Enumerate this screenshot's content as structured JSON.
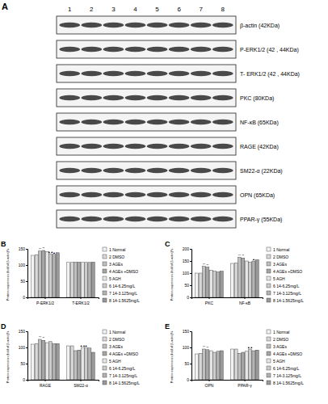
{
  "blot": {
    "title": "A",
    "lanes": [
      "1",
      "2",
      "3",
      "4",
      "5",
      "6",
      "7",
      "8"
    ],
    "proteins": [
      "β-actin (42KDa)",
      "P-ERK1/2 (42 , 44KDa)",
      "T- ERK1/2 (42 , 44KDa)",
      "PKC (80KDa)",
      "NF-κB (65KDa)",
      "RAGE (42KDa)",
      "SM22-α (22KDa)",
      "OPN (65KDa)",
      "PPAR-γ (55KDa)"
    ]
  },
  "chart_data": [
    {
      "type": "bar",
      "title": "B",
      "y_label": "Protein expression (fold of β-actin)%",
      "categories": [
        "P-ERK1/2",
        "T-ERK1/2"
      ],
      "ylim": [
        0,
        150
      ],
      "yticks": [
        0,
        50,
        100,
        150
      ],
      "legend": "right",
      "series": [
        {
          "name": "1 Normal",
          "color": "#f2f2f2",
          "values": [
            130,
            108
          ]
        },
        {
          "name": "2 DMSO",
          "color": "#d9d9d9",
          "values": [
            132,
            108
          ]
        },
        {
          "name": "3 AGEs",
          "color": "#bfbfbf",
          "values": [
            143,
            109
          ]
        },
        {
          "name": "4 AGEs +DMSO",
          "color": "#a6a6a6",
          "values": [
            145,
            109
          ]
        },
        {
          "name": "5 AGH",
          "color": "#e6e6e6",
          "values": [
            142,
            108
          ]
        },
        {
          "name": "6 14-6.25mg/L",
          "color": "#cccccc",
          "values": [
            135,
            108
          ]
        },
        {
          "name": "7 14-3.125mg/L",
          "color": "#b3b3b3",
          "values": [
            133,
            108
          ]
        },
        {
          "name": "8 14-1.5625mg/L",
          "color": "#999999",
          "values": [
            138,
            109
          ]
        }
      ],
      "annotations": [
        {
          "text": "**",
          "series": 2,
          "category": 0
        },
        {
          "text": "**",
          "series": 3,
          "category": 0
        },
        {
          "text": "▲▲",
          "series": 5,
          "category": 0
        },
        {
          "text": "▲",
          "series": 6,
          "category": 0
        }
      ]
    },
    {
      "type": "bar",
      "title": "C",
      "y_label": "Protein expression (fold of β-actin)%",
      "categories": [
        "PKC",
        "NF-κB"
      ],
      "ylim": [
        0,
        200
      ],
      "yticks": [
        0,
        50,
        100,
        150,
        200
      ],
      "legend": "right",
      "series": [
        {
          "name": "1 Normal",
          "color": "#f2f2f2",
          "values": [
            100,
            140
          ]
        },
        {
          "name": "2 DMSO",
          "color": "#d9d9d9",
          "values": [
            100,
            142
          ]
        },
        {
          "name": "3 AGEs",
          "color": "#bfbfbf",
          "values": [
            128,
            165
          ]
        },
        {
          "name": "4 AGEs +DMSO",
          "color": "#a6a6a6",
          "values": [
            125,
            162
          ]
        },
        {
          "name": "5 AGH",
          "color": "#e6e6e6",
          "values": [
            112,
            150
          ]
        },
        {
          "name": "6 14-6.25mg/L",
          "color": "#cccccc",
          "values": [
            108,
            145
          ]
        },
        {
          "name": "7 14-3.125mg/L",
          "color": "#b3b3b3",
          "values": [
            105,
            150
          ]
        },
        {
          "name": "8 14-1.5625mg/L",
          "color": "#999999",
          "values": [
            108,
            155
          ]
        }
      ],
      "annotations": [
        {
          "text": "**",
          "series": 2,
          "category": 0
        },
        {
          "text": "**",
          "series": 3,
          "category": 0
        },
        {
          "text": "**",
          "series": 2,
          "category": 1
        },
        {
          "text": "**",
          "series": 3,
          "category": 1
        },
        {
          "text": "▲",
          "series": 6,
          "category": 1
        }
      ]
    },
    {
      "type": "bar",
      "title": "D",
      "y_label": "Protein expression (fold of β-actin)%",
      "categories": [
        "RAGE",
        "SM22-α"
      ],
      "ylim": [
        0,
        150
      ],
      "yticks": [
        0,
        50,
        100,
        150
      ],
      "legend": "right",
      "series": [
        {
          "name": "1 Normal",
          "color": "#f2f2f2",
          "values": [
            110,
            105
          ]
        },
        {
          "name": "2 DMSO",
          "color": "#d9d9d9",
          "values": [
            112,
            105
          ]
        },
        {
          "name": "3 AGEs",
          "color": "#bfbfbf",
          "values": [
            125,
            90
          ]
        },
        {
          "name": "4 AGEs +DMSO",
          "color": "#a6a6a6",
          "values": [
            122,
            92
          ]
        },
        {
          "name": "5 AGH",
          "color": "#e6e6e6",
          "values": [
            115,
            100
          ]
        },
        {
          "name": "6 14-6.25mg/L",
          "color": "#cccccc",
          "values": [
            118,
            100
          ]
        },
        {
          "name": "7 14-3.125mg/L",
          "color": "#b3b3b3",
          "values": [
            112,
            98
          ]
        },
        {
          "name": "8 14-1.5625mg/L",
          "color": "#999999",
          "values": [
            112,
            85
          ]
        }
      ],
      "annotations": [
        {
          "text": "**",
          "series": 2,
          "category": 0
        },
        {
          "text": "**",
          "series": 3,
          "category": 0
        },
        {
          "text": "▲▲",
          "series": 4,
          "category": 1
        },
        {
          "text": "▲",
          "series": 5,
          "category": 1
        }
      ]
    },
    {
      "type": "bar",
      "title": "E",
      "y_label": "Protein expression (fold of β-actin)%",
      "categories": [
        "OPN",
        "PPAR-γ"
      ],
      "ylim": [
        0,
        150
      ],
      "yticks": [
        0,
        50,
        100,
        150
      ],
      "legend": "right",
      "series": [
        {
          "name": "1 Normal",
          "color": "#f2f2f2",
          "values": [
            80,
            95
          ]
        },
        {
          "name": "2 DMSO",
          "color": "#d9d9d9",
          "values": [
            82,
            95
          ]
        },
        {
          "name": "3 AGEs",
          "color": "#bfbfbf",
          "values": [
            95,
            82
          ]
        },
        {
          "name": "4 AGEs +DMSO",
          "color": "#a6a6a6",
          "values": [
            93,
            85
          ]
        },
        {
          "name": "5 AGH",
          "color": "#e6e6e6",
          "values": [
            90,
            88
          ]
        },
        {
          "name": "6 14-6.25mg/L",
          "color": "#cccccc",
          "values": [
            85,
            95
          ]
        },
        {
          "name": "7 14-3.125mg/L",
          "color": "#b3b3b3",
          "values": [
            88,
            90
          ]
        },
        {
          "name": "8 14-1.5625mg/L",
          "color": "#999999",
          "values": [
            90,
            92
          ]
        }
      ],
      "annotations": [
        {
          "text": "**",
          "series": 2,
          "category": 0
        },
        {
          "text": "**",
          "series": 3,
          "category": 0
        },
        {
          "text": "▲▲",
          "series": 5,
          "category": 1
        }
      ]
    }
  ]
}
